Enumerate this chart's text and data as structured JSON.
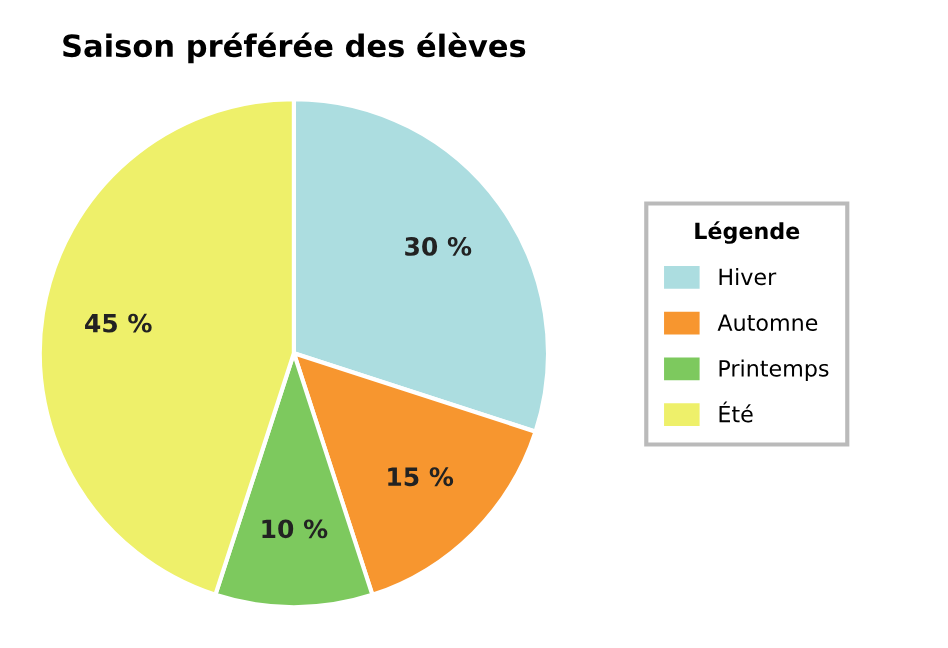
{
  "chart_data": {
    "type": "pie",
    "title": "Saison préférée des élèves",
    "legend_title": "Légende",
    "legend": "right",
    "categories": [
      "Hiver",
      "Automne",
      "Printemps",
      "Été"
    ],
    "values": [
      30,
      15,
      10,
      45
    ],
    "colors": [
      "#acdde0",
      "#f7962f",
      "#7dc95e",
      "#eef06a"
    ],
    "value_labels": [
      "30 %",
      "15 %",
      "10 %",
      "45 %"
    ]
  }
}
